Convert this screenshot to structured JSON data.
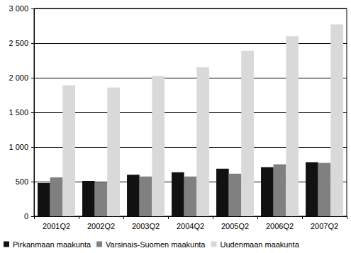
{
  "chart_data": {
    "type": "bar",
    "categories": [
      "2001Q2",
      "2002Q2",
      "2003Q2",
      "2004Q2",
      "2005Q2",
      "2006Q2",
      "2007Q2"
    ],
    "series": [
      {
        "name": "Pirkanmaan maakunta",
        "color": "#111111",
        "values": [
          480,
          510,
          600,
          635,
          685,
          710,
          780
        ]
      },
      {
        "name": "Varsinais-Suomen maakunta",
        "color": "#808080",
        "values": [
          560,
          495,
          575,
          575,
          615,
          750,
          770
        ]
      },
      {
        "name": "Uudenmaan maakunta",
        "color": "#d9d9d9",
        "values": [
          1890,
          1860,
          2025,
          2150,
          2390,
          2600,
          2770
        ]
      }
    ],
    "ylim": [
      0,
      3000
    ],
    "yticks": [
      0,
      500,
      {
        "value": 1000,
        "label": "1 000"
      },
      {
        "value": 1500,
        "label": "1 500"
      },
      {
        "value": 2000,
        "label": "2 000"
      },
      {
        "value": 2500,
        "label": "2 500"
      },
      {
        "value": 3000,
        "label": "3 000"
      }
    ],
    "grid": true,
    "legend": "bottom"
  }
}
